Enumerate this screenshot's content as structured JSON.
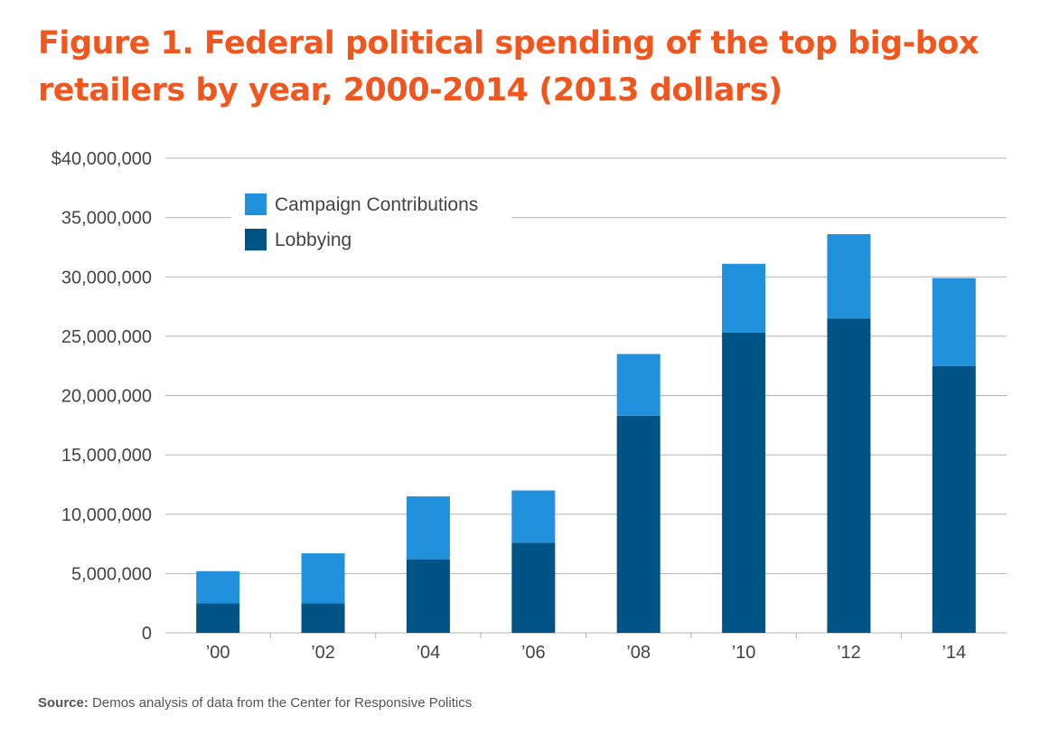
{
  "chart_data": {
    "type": "bar",
    "stacked": true,
    "title": "Figure 1. Federal political spending of the top big-box retailers by year, 2000-2014 (2013 dollars)",
    "categories": [
      "’00",
      "’02",
      "’04",
      "’06",
      "’08",
      "’10",
      "’12",
      "’14"
    ],
    "series": [
      {
        "name": "Lobbying",
        "color": "#005485",
        "values": [
          2500000,
          2500000,
          6200000,
          7600000,
          18300000,
          25300000,
          26500000,
          22500000
        ]
      },
      {
        "name": "Campaign Contributions",
        "color": "#2191de",
        "values": [
          2700000,
          4200000,
          5300000,
          4400000,
          5200000,
          5800000,
          7100000,
          7400000
        ]
      }
    ],
    "ylim": [
      0,
      40000000
    ],
    "yticks": [
      {
        "value": 0,
        "label": "0"
      },
      {
        "value": 5000000,
        "label": "5,000,000"
      },
      {
        "value": 10000000,
        "label": "10,000,000"
      },
      {
        "value": 15000000,
        "label": "15,000,000"
      },
      {
        "value": 20000000,
        "label": "20,000,000"
      },
      {
        "value": 25000000,
        "label": "25,000,000"
      },
      {
        "value": 30000000,
        "label": "30,000,000"
      },
      {
        "value": 35000000,
        "label": "35,000,000"
      },
      {
        "value": 40000000,
        "label": "$40,000,000"
      }
    ],
    "legend": {
      "position": "top-left",
      "entries": [
        "Campaign Contributions",
        "Lobbying"
      ]
    },
    "grid": true,
    "gridline_color": "#b3b3b3",
    "xlabel": "",
    "ylabel": ""
  },
  "source": {
    "label": "Source:",
    "text": " Demos analysis of data from the Center for Responsive Politics"
  },
  "colors": {
    "title": "#f0561e",
    "text": "#444444"
  }
}
